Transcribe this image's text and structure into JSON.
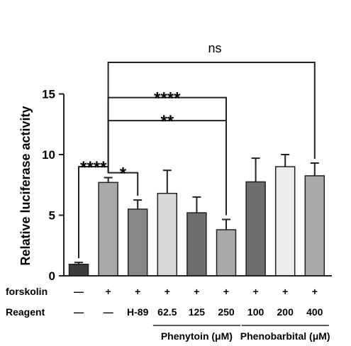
{
  "chart_data": {
    "type": "bar",
    "ylabel": "Relative luciferase activity",
    "ylim": [
      0,
      15
    ],
    "yticks": [
      0,
      5,
      10,
      15
    ],
    "grid": false,
    "bars": [
      {
        "value": 0.95,
        "error": 0.15,
        "color": "#3b3b3b"
      },
      {
        "value": 7.7,
        "error": 0.4,
        "color": "#a9a9a9"
      },
      {
        "value": 5.5,
        "error": 0.75,
        "color": "#888888"
      },
      {
        "value": 6.8,
        "error": 1.9,
        "color": "#d8d8d8"
      },
      {
        "value": 5.2,
        "error": 1.3,
        "color": "#6e6e6e"
      },
      {
        "value": 3.8,
        "error": 0.85,
        "color": "#a9a9a9"
      },
      {
        "value": 7.75,
        "error": 1.95,
        "color": "#6e6e6e"
      },
      {
        "value": 9.0,
        "error": 1.0,
        "color": "#ececec"
      },
      {
        "value": 8.25,
        "error": 1.05,
        "color": "#a9a9a9"
      }
    ],
    "rows": [
      {
        "label": "forskolin",
        "cells": [
          "—",
          "+",
          "+",
          "+",
          "+",
          "+",
          "+",
          "+",
          "+"
        ]
      },
      {
        "label": "Reagent",
        "cells": [
          "—",
          "—",
          "H-89",
          "62.5",
          "125",
          "250",
          "100",
          "200",
          "400"
        ]
      }
    ],
    "groups": [
      {
        "label": "Phenytoin (μM)",
        "from": 3,
        "to": 5
      },
      {
        "label": "Phenobarbital (μM)",
        "from": 6,
        "to": 8
      }
    ],
    "comparisons": [
      {
        "from": 0,
        "to": 1,
        "label": "****",
        "level": 9.0
      },
      {
        "from": 1,
        "to": 2,
        "label": "*",
        "level": 8.5
      },
      {
        "from": 1,
        "to": 5,
        "label": "**",
        "level": 12.8
      },
      {
        "from": 1,
        "to": 5,
        "label": "****",
        "level": 14.7
      },
      {
        "from": 1,
        "to": 8,
        "label": "ns",
        "level": 17.6
      }
    ]
  }
}
